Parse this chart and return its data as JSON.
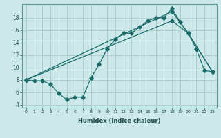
{
  "xlabel": "Humidex (Indice chaleur)",
  "bg_color": "#cce8e8",
  "grid_color": "#aacece",
  "line_color": "#1a6b6b",
  "yticks": [
    4,
    6,
    8,
    10,
    12,
    14,
    16,
    18
  ],
  "xticks": [
    0,
    1,
    2,
    3,
    4,
    5,
    6,
    7,
    8,
    9,
    10,
    11,
    12,
    13,
    14,
    15,
    16,
    17,
    18,
    19,
    20,
    21,
    22,
    23
  ],
  "series": [
    {
      "x": [
        0,
        1,
        2,
        3,
        4,
        5,
        6,
        7,
        8,
        9,
        10,
        11,
        12,
        13,
        14,
        15,
        16,
        17,
        18,
        19,
        20,
        21,
        22,
        23
      ],
      "y": [
        8.0,
        7.8,
        7.8,
        7.3,
        5.8,
        4.8,
        5.2,
        5.2,
        8.3,
        10.5,
        13.0,
        14.5,
        15.5,
        15.5,
        16.5,
        17.5,
        18.0,
        18.0,
        19.5,
        17.3,
        15.5,
        13.0,
        9.5,
        9.3
      ]
    },
    {
      "x": [
        0,
        18,
        20,
        23
      ],
      "y": [
        8.0,
        19.0,
        15.5,
        9.3
      ]
    },
    {
      "x": [
        0,
        18,
        20,
        23
      ],
      "y": [
        8.0,
        17.5,
        15.5,
        9.3
      ]
    }
  ]
}
